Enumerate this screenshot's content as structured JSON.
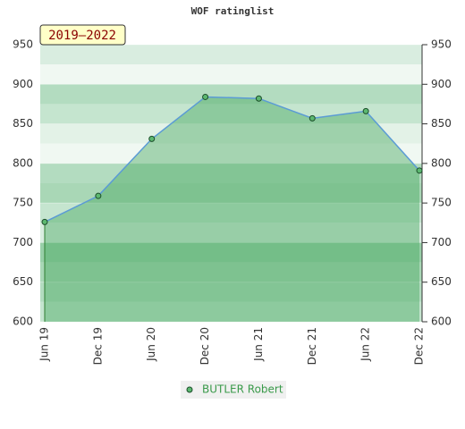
{
  "chart_data": {
    "type": "area",
    "title": "WOF ratinglist",
    "badge": "2019–2022",
    "categories": [
      "Jun 19",
      "Dec 19",
      "Jun 20",
      "Dec 20",
      "Jun 21",
      "Dec 21",
      "Jun 22",
      "Dec 22"
    ],
    "series": [
      {
        "name": "BUTLER Robert",
        "color": "#5b9bd5",
        "values": [
          726,
          759,
          831,
          884,
          882,
          857,
          866,
          791
        ]
      }
    ],
    "ylim": [
      600,
      950
    ],
    "yticks": [
      600,
      650,
      700,
      750,
      800,
      850,
      900,
      950
    ],
    "grid": true
  }
}
